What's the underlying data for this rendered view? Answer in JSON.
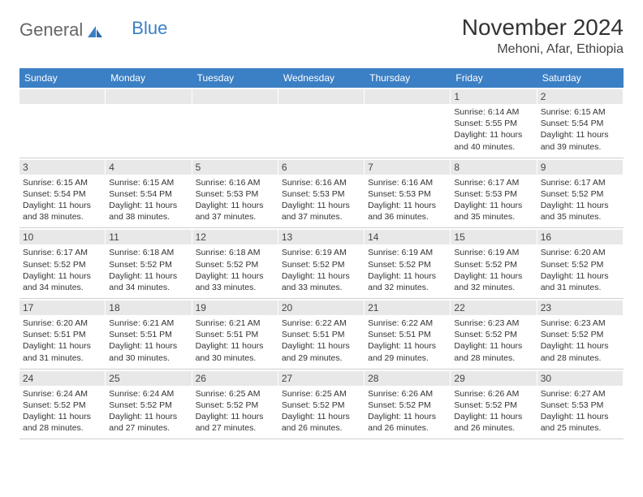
{
  "brand": {
    "part1": "General",
    "part2": "Blue"
  },
  "title": "November 2024",
  "location": "Mehoni, Afar, Ethiopia",
  "colors": {
    "header_bg": "#3b7fc4",
    "header_text": "#ffffff",
    "daynum_bg": "#e8e8e8",
    "text": "#333333",
    "border": "#cfcfcf"
  },
  "typography": {
    "title_fontsize": 28,
    "location_fontsize": 16,
    "dayheader_fontsize": 12,
    "detail_fontsize": 10.5
  },
  "day_headers": [
    "Sunday",
    "Monday",
    "Tuesday",
    "Wednesday",
    "Thursday",
    "Friday",
    "Saturday"
  ],
  "weeks": [
    [
      {
        "n": "",
        "sr": "",
        "ss": "",
        "dl": ""
      },
      {
        "n": "",
        "sr": "",
        "ss": "",
        "dl": ""
      },
      {
        "n": "",
        "sr": "",
        "ss": "",
        "dl": ""
      },
      {
        "n": "",
        "sr": "",
        "ss": "",
        "dl": ""
      },
      {
        "n": "",
        "sr": "",
        "ss": "",
        "dl": ""
      },
      {
        "n": "1",
        "sr": "Sunrise: 6:14 AM",
        "ss": "Sunset: 5:55 PM",
        "dl": "Daylight: 11 hours and 40 minutes."
      },
      {
        "n": "2",
        "sr": "Sunrise: 6:15 AM",
        "ss": "Sunset: 5:54 PM",
        "dl": "Daylight: 11 hours and 39 minutes."
      }
    ],
    [
      {
        "n": "3",
        "sr": "Sunrise: 6:15 AM",
        "ss": "Sunset: 5:54 PM",
        "dl": "Daylight: 11 hours and 38 minutes."
      },
      {
        "n": "4",
        "sr": "Sunrise: 6:15 AM",
        "ss": "Sunset: 5:54 PM",
        "dl": "Daylight: 11 hours and 38 minutes."
      },
      {
        "n": "5",
        "sr": "Sunrise: 6:16 AM",
        "ss": "Sunset: 5:53 PM",
        "dl": "Daylight: 11 hours and 37 minutes."
      },
      {
        "n": "6",
        "sr": "Sunrise: 6:16 AM",
        "ss": "Sunset: 5:53 PM",
        "dl": "Daylight: 11 hours and 37 minutes."
      },
      {
        "n": "7",
        "sr": "Sunrise: 6:16 AM",
        "ss": "Sunset: 5:53 PM",
        "dl": "Daylight: 11 hours and 36 minutes."
      },
      {
        "n": "8",
        "sr": "Sunrise: 6:17 AM",
        "ss": "Sunset: 5:53 PM",
        "dl": "Daylight: 11 hours and 35 minutes."
      },
      {
        "n": "9",
        "sr": "Sunrise: 6:17 AM",
        "ss": "Sunset: 5:52 PM",
        "dl": "Daylight: 11 hours and 35 minutes."
      }
    ],
    [
      {
        "n": "10",
        "sr": "Sunrise: 6:17 AM",
        "ss": "Sunset: 5:52 PM",
        "dl": "Daylight: 11 hours and 34 minutes."
      },
      {
        "n": "11",
        "sr": "Sunrise: 6:18 AM",
        "ss": "Sunset: 5:52 PM",
        "dl": "Daylight: 11 hours and 34 minutes."
      },
      {
        "n": "12",
        "sr": "Sunrise: 6:18 AM",
        "ss": "Sunset: 5:52 PM",
        "dl": "Daylight: 11 hours and 33 minutes."
      },
      {
        "n": "13",
        "sr": "Sunrise: 6:19 AM",
        "ss": "Sunset: 5:52 PM",
        "dl": "Daylight: 11 hours and 33 minutes."
      },
      {
        "n": "14",
        "sr": "Sunrise: 6:19 AM",
        "ss": "Sunset: 5:52 PM",
        "dl": "Daylight: 11 hours and 32 minutes."
      },
      {
        "n": "15",
        "sr": "Sunrise: 6:19 AM",
        "ss": "Sunset: 5:52 PM",
        "dl": "Daylight: 11 hours and 32 minutes."
      },
      {
        "n": "16",
        "sr": "Sunrise: 6:20 AM",
        "ss": "Sunset: 5:52 PM",
        "dl": "Daylight: 11 hours and 31 minutes."
      }
    ],
    [
      {
        "n": "17",
        "sr": "Sunrise: 6:20 AM",
        "ss": "Sunset: 5:51 PM",
        "dl": "Daylight: 11 hours and 31 minutes."
      },
      {
        "n": "18",
        "sr": "Sunrise: 6:21 AM",
        "ss": "Sunset: 5:51 PM",
        "dl": "Daylight: 11 hours and 30 minutes."
      },
      {
        "n": "19",
        "sr": "Sunrise: 6:21 AM",
        "ss": "Sunset: 5:51 PM",
        "dl": "Daylight: 11 hours and 30 minutes."
      },
      {
        "n": "20",
        "sr": "Sunrise: 6:22 AM",
        "ss": "Sunset: 5:51 PM",
        "dl": "Daylight: 11 hours and 29 minutes."
      },
      {
        "n": "21",
        "sr": "Sunrise: 6:22 AM",
        "ss": "Sunset: 5:51 PM",
        "dl": "Daylight: 11 hours and 29 minutes."
      },
      {
        "n": "22",
        "sr": "Sunrise: 6:23 AM",
        "ss": "Sunset: 5:52 PM",
        "dl": "Daylight: 11 hours and 28 minutes."
      },
      {
        "n": "23",
        "sr": "Sunrise: 6:23 AM",
        "ss": "Sunset: 5:52 PM",
        "dl": "Daylight: 11 hours and 28 minutes."
      }
    ],
    [
      {
        "n": "24",
        "sr": "Sunrise: 6:24 AM",
        "ss": "Sunset: 5:52 PM",
        "dl": "Daylight: 11 hours and 28 minutes."
      },
      {
        "n": "25",
        "sr": "Sunrise: 6:24 AM",
        "ss": "Sunset: 5:52 PM",
        "dl": "Daylight: 11 hours and 27 minutes."
      },
      {
        "n": "26",
        "sr": "Sunrise: 6:25 AM",
        "ss": "Sunset: 5:52 PM",
        "dl": "Daylight: 11 hours and 27 minutes."
      },
      {
        "n": "27",
        "sr": "Sunrise: 6:25 AM",
        "ss": "Sunset: 5:52 PM",
        "dl": "Daylight: 11 hours and 26 minutes."
      },
      {
        "n": "28",
        "sr": "Sunrise: 6:26 AM",
        "ss": "Sunset: 5:52 PM",
        "dl": "Daylight: 11 hours and 26 minutes."
      },
      {
        "n": "29",
        "sr": "Sunrise: 6:26 AM",
        "ss": "Sunset: 5:52 PM",
        "dl": "Daylight: 11 hours and 26 minutes."
      },
      {
        "n": "30",
        "sr": "Sunrise: 6:27 AM",
        "ss": "Sunset: 5:53 PM",
        "dl": "Daylight: 11 hours and 25 minutes."
      }
    ]
  ]
}
